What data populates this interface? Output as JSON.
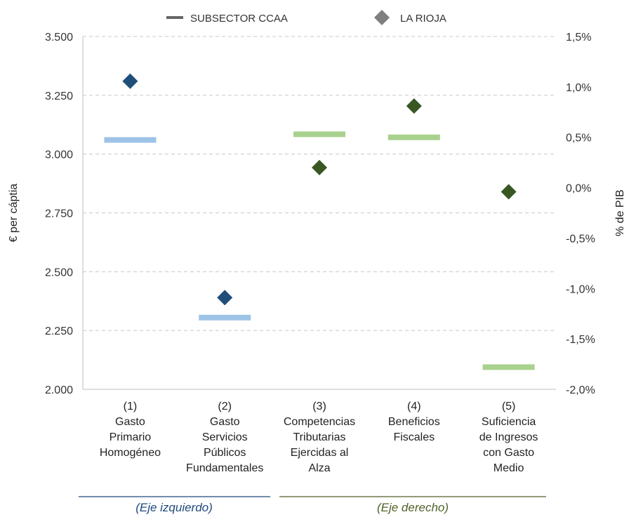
{
  "chart_data": {
    "type": "scatter",
    "legend": {
      "placement": "top",
      "items": [
        {
          "label": "SUBSECTOR CCAA",
          "marker": "line",
          "color": "#666666"
        },
        {
          "label": "LA RIOJA",
          "marker": "diamond",
          "color": "#7f7f7f"
        }
      ]
    },
    "y_left": {
      "label": "€ per cáptia",
      "ticks": [
        "2.000",
        "2.250",
        "2.500",
        "2.750",
        "3.000",
        "3.250",
        "3.500"
      ],
      "range": [
        2000,
        3500
      ]
    },
    "y_right": {
      "label": "% de PIB",
      "ticks": [
        "-2,0%",
        "-1,5%",
        "-1,0%",
        "-0,5%",
        "0,0%",
        "0,5%",
        "1,0%",
        "1,5%"
      ],
      "range": [
        -2.0,
        1.5
      ]
    },
    "grid": true,
    "categories": [
      {
        "lines": [
          "(1)",
          "Gasto",
          "Primario",
          "Homogéneo"
        ],
        "axis": "left",
        "subsector": 3060,
        "la_rioja": 3310
      },
      {
        "lines": [
          "(2)",
          "Gasto",
          "Servicios",
          "Públicos",
          "Fundamentales"
        ],
        "axis": "left",
        "subsector": 2305,
        "la_rioja": 2390
      },
      {
        "lines": [
          "(3)",
          "Competencias",
          "Tributarias",
          "Ejercidas al",
          "Alza"
        ],
        "axis": "right",
        "subsector": 0.53,
        "la_rioja": 0.2
      },
      {
        "lines": [
          "(4)",
          "Beneficios",
          "Fiscales"
        ],
        "axis": "right",
        "subsector": 0.5,
        "la_rioja": 0.81
      },
      {
        "lines": [
          "(5)",
          "Suficiencia",
          "de Ingresos",
          "con Gasto",
          "Medio"
        ],
        "axis": "right",
        "subsector": -1.78,
        "la_rioja": -0.04
      }
    ],
    "groups": [
      {
        "label": "(Eje izquierdo)",
        "color": "#1f497d"
      },
      {
        "label": "(Eje derecho)",
        "color": "#4f6228"
      }
    ],
    "colors": {
      "left_subsector": "#9dc3e6",
      "left_rioja": "#1f4e79",
      "right_subsector": "#a9d18e",
      "right_rioja": "#385723",
      "grid": "#c8c8c8"
    }
  }
}
